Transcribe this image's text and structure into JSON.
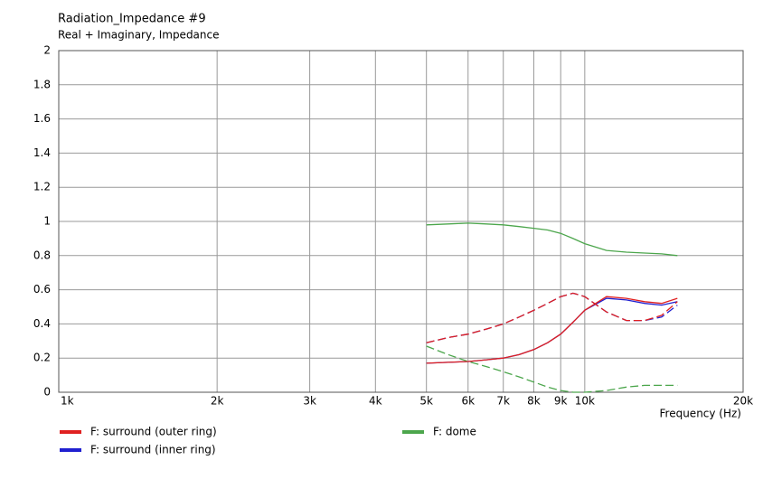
{
  "chart_data": {
    "type": "line",
    "title": "Radiation_Impedance #9",
    "subtitle": "Real + Imaginary, Impedance",
    "x_label": "Frequency  (Hz)",
    "log_x": true,
    "grid": true,
    "x": [
      5000,
      5500,
      6000,
      6500,
      7000,
      7500,
      8000,
      8500,
      9000,
      9500,
      10000,
      11000,
      12000,
      13000,
      14000,
      15000
    ],
    "xlim": [
      1000,
      20000
    ],
    "xticks": [
      {
        "value": 1000,
        "label": "1k"
      },
      {
        "value": 2000,
        "label": "2k"
      },
      {
        "value": 3000,
        "label": "3k"
      },
      {
        "value": 4000,
        "label": "4k"
      },
      {
        "value": 5000,
        "label": "5k"
      },
      {
        "value": 6000,
        "label": "6k"
      },
      {
        "value": 7000,
        "label": "7k"
      },
      {
        "value": 8000,
        "label": "8k"
      },
      {
        "value": 9000,
        "label": "9k"
      },
      {
        "value": 10000,
        "label": "10k"
      },
      {
        "value": 20000,
        "label": "20k"
      }
    ],
    "ylim": [
      0,
      2
    ],
    "yticks": [
      0,
      0.2,
      0.4,
      0.6,
      0.8,
      1,
      1.2,
      1.4,
      1.6,
      1.8,
      2
    ],
    "series": [
      {
        "name": "F: surround (outer ring)",
        "color": "#e02020",
        "values": [
          0.17,
          0.175,
          0.18,
          0.19,
          0.2,
          0.22,
          0.25,
          0.29,
          0.34,
          0.41,
          0.48,
          0.56,
          0.55,
          0.53,
          0.52,
          0.55
        ],
        "imaginary_values": [
          0.29,
          0.32,
          0.34,
          0.37,
          0.4,
          0.44,
          0.48,
          0.52,
          0.56,
          0.58,
          0.56,
          0.47,
          0.42,
          0.42,
          0.45,
          0.53
        ]
      },
      {
        "name": "F: surround (inner ring)",
        "color": "#2020d0",
        "values": [
          0.17,
          0.175,
          0.18,
          0.19,
          0.2,
          0.22,
          0.25,
          0.29,
          0.34,
          0.41,
          0.48,
          0.55,
          0.54,
          0.52,
          0.51,
          0.53
        ],
        "imaginary_values": [
          0.29,
          0.32,
          0.34,
          0.37,
          0.4,
          0.44,
          0.48,
          0.52,
          0.56,
          0.58,
          0.56,
          0.47,
          0.42,
          0.42,
          0.44,
          0.51
        ]
      },
      {
        "name": "F: dome",
        "color": "#4ca64c",
        "values": [
          0.98,
          0.985,
          0.99,
          0.985,
          0.98,
          0.97,
          0.96,
          0.95,
          0.93,
          0.9,
          0.87,
          0.83,
          0.82,
          0.815,
          0.81,
          0.8
        ],
        "imaginary_values": [
          0.27,
          0.22,
          0.18,
          0.15,
          0.12,
          0.09,
          0.06,
          0.03,
          0.01,
          0,
          0,
          0.01,
          0.03,
          0.04,
          0.04,
          0.04
        ]
      }
    ]
  }
}
